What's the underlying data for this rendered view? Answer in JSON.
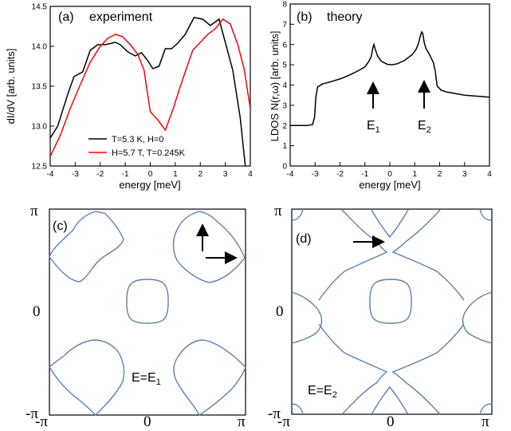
{
  "chart_data": [
    {
      "type": "line",
      "panel_label": "(a)",
      "title": "experiment",
      "xlabel": "energy [meV]",
      "ylabel": "dI/dV   [arb. units]",
      "xlim": [
        -4,
        4
      ],
      "ylim": [
        12.5,
        14.5
      ],
      "xticks": [
        "-4",
        "-3",
        "-2",
        "-1",
        "0",
        "1",
        "2",
        "3",
        "4"
      ],
      "yticks": [
        "12.5",
        "13.0",
        "13.5",
        "14.0",
        "14.5"
      ],
      "legend_position": "bottom-center",
      "series": [
        {
          "name": "T=5.3 K, H=0",
          "color": "#000000",
          "x": [
            -4.0,
            -3.7,
            -3.3,
            -3.05,
            -2.7,
            -2.4,
            -2.1,
            -1.8,
            -1.4,
            -1.2,
            -0.9,
            -0.6,
            -0.35,
            -0.1,
            0.1,
            0.35,
            0.6,
            0.85,
            1.1,
            1.4,
            1.75,
            2.1,
            2.4,
            2.75,
            3.0,
            3.3,
            3.6,
            3.8
          ],
          "y": [
            12.85,
            13.0,
            13.4,
            13.62,
            13.68,
            13.95,
            14.02,
            14.02,
            14.05,
            14.02,
            13.93,
            13.88,
            13.92,
            13.82,
            13.72,
            13.75,
            13.97,
            13.97,
            14.04,
            14.15,
            14.36,
            14.34,
            14.26,
            14.34,
            14.05,
            13.7,
            13.1,
            12.5
          ]
        },
        {
          "name": "H=5.7 T, T=0.245K",
          "color": "#ff0000",
          "x": [
            -4.0,
            -3.6,
            -3.2,
            -2.8,
            -2.4,
            -2.0,
            -1.7,
            -1.4,
            -1.1,
            -0.8,
            -0.5,
            -0.25,
            0.0,
            0.3,
            0.6,
            0.9,
            1.15,
            1.4,
            1.7,
            2.0,
            2.3,
            2.6,
            2.9,
            3.2,
            3.5,
            3.75,
            4.0
          ],
          "y": [
            12.62,
            12.88,
            13.22,
            13.52,
            13.8,
            14.0,
            14.1,
            14.15,
            14.12,
            14.02,
            13.9,
            13.7,
            13.18,
            13.08,
            12.95,
            13.2,
            13.45,
            13.68,
            13.95,
            14.05,
            14.15,
            14.22,
            14.34,
            14.28,
            14.02,
            13.72,
            13.22
          ]
        }
      ]
    },
    {
      "type": "line",
      "panel_label": "(b)",
      "title": "theory",
      "xlabel": "energy [meV]",
      "ylabel": "LDOS N(r,ω)  [arb. units]",
      "xlim": [
        -4,
        4
      ],
      "ylim": [
        0,
        8
      ],
      "xticks": [
        "-4",
        "-3",
        "-2",
        "-1",
        "0",
        "1",
        "2",
        "3",
        "4"
      ],
      "yticks": [
        "0",
        "1",
        "2",
        "3",
        "4",
        "5",
        "6",
        "7",
        "8"
      ],
      "annotations": [
        {
          "text": "E",
          "sub": "1",
          "x": -0.65
        },
        {
          "text": "E",
          "sub": "2",
          "x": 1.3
        }
      ],
      "series": [
        {
          "name": "",
          "color": "#000000",
          "x": [
            -4.0,
            -3.3,
            -3.1,
            -3.02,
            -2.97,
            -2.9,
            -2.7,
            -2.4,
            -2.0,
            -1.6,
            -1.2,
            -1.0,
            -0.85,
            -0.75,
            -0.68,
            -0.64,
            -0.58,
            -0.5,
            -0.35,
            -0.1,
            0.1,
            0.3,
            0.6,
            0.9,
            1.05,
            1.15,
            1.22,
            1.28,
            1.32,
            1.38,
            1.45,
            1.55,
            1.65,
            1.75,
            1.82,
            1.9,
            2.05,
            2.3,
            3.0,
            4.0
          ],
          "y": [
            2.0,
            2.0,
            2.05,
            2.4,
            3.4,
            3.9,
            4.05,
            4.15,
            4.3,
            4.5,
            4.75,
            4.9,
            5.15,
            5.4,
            5.85,
            6.0,
            5.75,
            5.45,
            5.18,
            5.02,
            5.0,
            5.05,
            5.22,
            5.5,
            5.75,
            6.05,
            6.4,
            6.62,
            6.55,
            6.1,
            5.8,
            5.6,
            5.35,
            5.1,
            4.7,
            3.95,
            3.75,
            3.65,
            3.5,
            3.4
          ]
        }
      ]
    },
    {
      "type": "contour",
      "panel_label": "(c)",
      "annotation": {
        "text": "E=E",
        "sub": "1"
      },
      "xlim": [
        -3.1416,
        3.1416
      ],
      "ylim": [
        -3.1416,
        3.1416
      ],
      "xticks": [
        "-π",
        "0",
        "π"
      ],
      "yticks": [
        "-π",
        "0",
        "π"
      ],
      "contour_color": "#5b82ad",
      "pockets": [
        {
          "center": [
            0,
            0
          ],
          "radius": 1.0
        },
        {
          "center": [
            1.57,
            1.57
          ],
          "radius": 1.35
        },
        {
          "center": [
            -1.57,
            1.57
          ],
          "radius": 1.35
        },
        {
          "center": [
            1.57,
            -1.57
          ],
          "radius": 1.35
        },
        {
          "center": [
            -1.57,
            -1.57
          ],
          "radius": 1.35
        }
      ]
    },
    {
      "type": "contour",
      "panel_label": "(d)",
      "annotation": {
        "text": "E=E",
        "sub": "2"
      },
      "xlim": [
        -3.1416,
        3.1416
      ],
      "ylim": [
        -3.1416,
        3.1416
      ],
      "xticks": [
        "-π",
        "0",
        "π"
      ],
      "yticks": [
        "-π",
        "0",
        "π"
      ],
      "contour_color": "#5b82ad",
      "pockets": [
        {
          "center": [
            0,
            0
          ],
          "radius": 1.0
        }
      ]
    }
  ]
}
